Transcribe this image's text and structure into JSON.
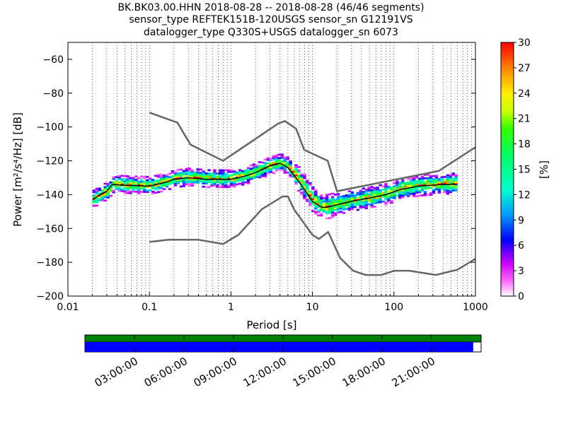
{
  "chart_data": {
    "type": "heatmap",
    "title_lines": [
      "BK.BK03.00.HHN   2018-08-28 -- 2018-08-28  (46/46 segments)",
      "sensor_type REFTEK151B-120USGS sensor_sn G12191VS",
      "datalogger_type Q330S+USGS datalogger_sn 6073"
    ],
    "xlabel": "Period [s]",
    "ylabel": "Power [m²/s⁴/Hz] [dB]",
    "xscale": "log",
    "xlim": [
      0.01,
      1000
    ],
    "ylim": [
      -200,
      -50
    ],
    "xticks": [
      {
        "value": 0.01,
        "label": "0.01"
      },
      {
        "value": 0.1,
        "label": "0.1"
      },
      {
        "value": 1,
        "label": "1"
      },
      {
        "value": 10,
        "label": "10"
      },
      {
        "value": 100,
        "label": "100"
      },
      {
        "value": 1000,
        "label": "1000"
      }
    ],
    "yticks": [
      {
        "value": -60,
        "label": "−60"
      },
      {
        "value": -80,
        "label": "−80"
      },
      {
        "value": -100,
        "label": "−100"
      },
      {
        "value": -120,
        "label": "−120"
      },
      {
        "value": -140,
        "label": "−140"
      },
      {
        "value": -160,
        "label": "−160"
      },
      {
        "value": -180,
        "label": "−180"
      },
      {
        "value": -200,
        "label": "−200"
      }
    ],
    "grid": "dotted vertical",
    "colorbar": {
      "label": "[%]",
      "range": [
        0,
        30
      ],
      "ticks": [
        {
          "value": 0,
          "label": "0"
        },
        {
          "value": 3,
          "label": "3"
        },
        {
          "value": 6,
          "label": "6"
        },
        {
          "value": 9,
          "label": "9"
        },
        {
          "value": 12,
          "label": "12"
        },
        {
          "value": 15,
          "label": "15"
        },
        {
          "value": 18,
          "label": "18"
        },
        {
          "value": 21,
          "label": "21"
        },
        {
          "value": 24,
          "label": "24"
        },
        {
          "value": 27,
          "label": "27"
        },
        {
          "value": 30,
          "label": "30"
        }
      ]
    },
    "noise_model_high": [
      [
        0.1,
        -91.5
      ],
      [
        0.22,
        -97.4
      ],
      [
        0.32,
        -110.5
      ],
      [
        0.8,
        -120
      ],
      [
        3.8,
        -98
      ],
      [
        4.6,
        -96.5
      ],
      [
        6.3,
        -101
      ],
      [
        7.9,
        -113.5
      ],
      [
        15.4,
        -120
      ],
      [
        20,
        -138
      ],
      [
        354.8,
        -126
      ],
      [
        1000,
        -112
      ]
    ],
    "noise_model_low": [
      [
        0.1,
        -168
      ],
      [
        0.17,
        -166.7
      ],
      [
        0.4,
        -166.7
      ],
      [
        0.8,
        -169.2
      ],
      [
        1.24,
        -163.7
      ],
      [
        2.4,
        -148.6
      ],
      [
        4.3,
        -141.1
      ],
      [
        5,
        -141.1
      ],
      [
        6,
        -149
      ],
      [
        10,
        -163.8
      ],
      [
        12,
        -166.2
      ],
      [
        15.6,
        -162.1
      ],
      [
        21.9,
        -177.5
      ],
      [
        31.6,
        -185
      ],
      [
        45,
        -187.5
      ],
      [
        70,
        -187.5
      ],
      [
        101,
        -185
      ],
      [
        154,
        -185
      ],
      [
        328,
        -187.5
      ],
      [
        600,
        -184.4
      ],
      [
        1000,
        -178
      ]
    ],
    "mean_curve": [
      [
        0.02,
        -143
      ],
      [
        0.025,
        -140
      ],
      [
        0.03,
        -138
      ],
      [
        0.035,
        -134
      ],
      [
        0.05,
        -134.5
      ],
      [
        0.1,
        -135
      ],
      [
        0.15,
        -133
      ],
      [
        0.2,
        -131
      ],
      [
        0.3,
        -130
      ],
      [
        0.5,
        -131
      ],
      [
        0.8,
        -131
      ],
      [
        1,
        -131
      ],
      [
        1.5,
        -129
      ],
      [
        2,
        -127
      ],
      [
        3,
        -123
      ],
      [
        4,
        -121.5
      ],
      [
        5,
        -124
      ],
      [
        7,
        -133
      ],
      [
        10,
        -144
      ],
      [
        13,
        -147.5
      ],
      [
        15,
        -147.5
      ],
      [
        20,
        -146
      ],
      [
        30,
        -144
      ],
      [
        50,
        -142
      ],
      [
        80,
        -140
      ],
      [
        120,
        -137
      ],
      [
        200,
        -135
      ],
      [
        400,
        -134
      ],
      [
        600,
        -134
      ]
    ],
    "data_availability": {
      "time_ticks": [
        "03:00:00",
        "06:00:00",
        "09:00:00",
        "12:00:00",
        "15:00:00",
        "18:00:00",
        "21:00:00"
      ],
      "segments_end_fraction": 0.98,
      "colors": {
        "available": "#008000",
        "used": "#0000ff"
      }
    },
    "colors": {
      "noise_models": "#666666",
      "mean": "#000000"
    }
  }
}
